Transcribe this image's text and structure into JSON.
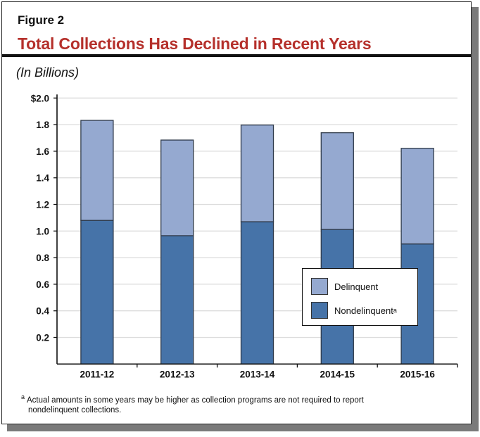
{
  "figure_label": "Figure 2",
  "chart_data": {
    "type": "bar",
    "stacked": true,
    "title": "Total Collections Has Declined in Recent Years",
    "subtitle": "(In Billions)",
    "categories": [
      "2011-12",
      "2012-13",
      "2013-14",
      "2014-15",
      "2015-16"
    ],
    "series": [
      {
        "name": "Nondelinquent",
        "superscript": "a",
        "color": "#4673a8",
        "values": [
          1.08,
          0.965,
          1.07,
          1.012,
          0.903
        ]
      },
      {
        "name": "Delinquent",
        "color": "#95a9d0",
        "values": [
          0.752,
          0.719,
          0.727,
          0.727,
          0.719
        ]
      }
    ],
    "ylim": [
      0,
      2.0
    ],
    "yticks": [
      0.2,
      0.4,
      0.6,
      0.8,
      1.0,
      1.2,
      1.4,
      1.6,
      1.8,
      2.0
    ],
    "ytick_labels": [
      "0.2",
      "0.4",
      "0.6",
      "0.8",
      "1.0",
      "1.2",
      "1.4",
      "1.6",
      "1.8",
      "$2.0"
    ],
    "grid": true,
    "legend_position": "bottom-right"
  },
  "footnote": {
    "marker": "a",
    "text": "Actual amounts in some years may be higher as collection programs are not required to report",
    "text2": "nondelinquent collections."
  }
}
